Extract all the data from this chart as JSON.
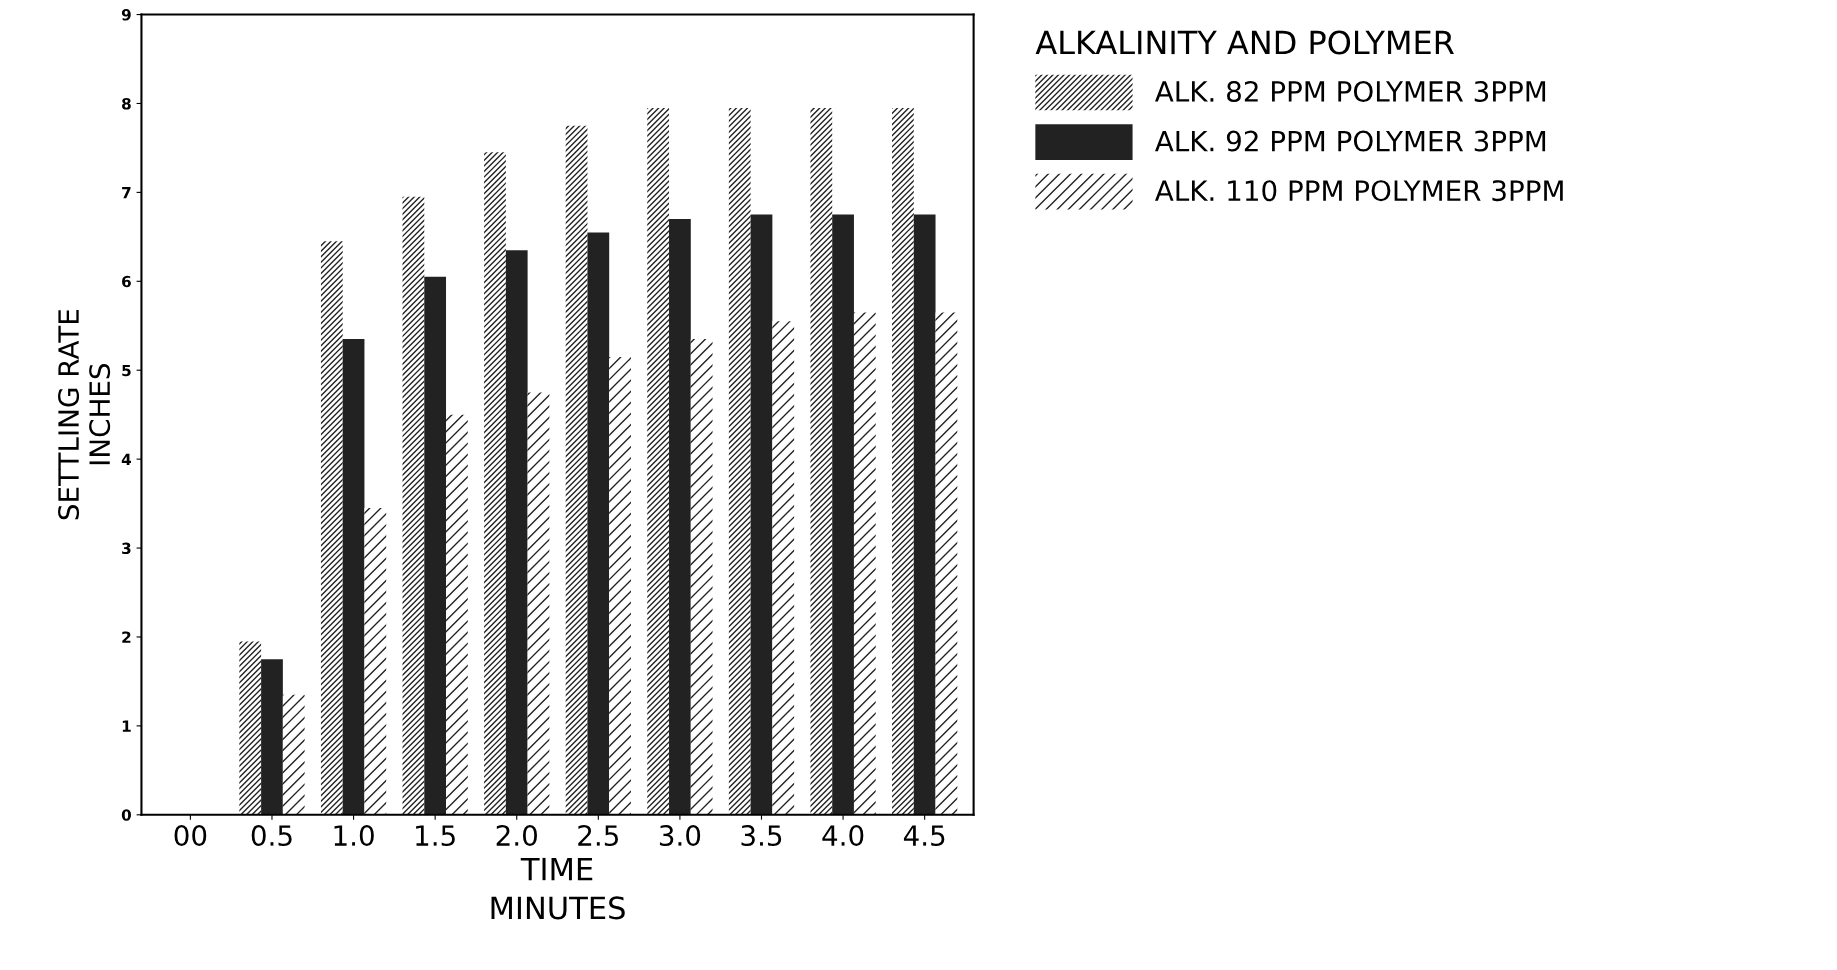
{
  "chart_data": {
    "type": "bar",
    "xlabel": "TIME\nMINUTES",
    "ylabel": "SETTLING RATE\nINCHES",
    "legend_title": "ALKALINITY AND POLYMER",
    "categories": [
      "00",
      "0.5",
      "1.0",
      "1.5",
      "2.0",
      "2.5",
      "3.0",
      "3.5",
      "4.0",
      "4.5"
    ],
    "series": [
      {
        "name": "ALK. 82 PPM POLYMER 3PPM",
        "color": "#ffffff",
        "values": [
          0,
          1.95,
          6.45,
          6.95,
          7.45,
          7.75,
          7.95,
          7.95,
          7.95,
          7.95
        ]
      },
      {
        "name": "ALK. 92 PPM POLYMER 3PPM",
        "color": "#222222",
        "values": [
          0,
          1.75,
          5.35,
          6.05,
          6.35,
          6.55,
          6.7,
          6.75,
          6.75,
          6.75
        ]
      },
      {
        "name": "ALK. 110 PPM POLYMER 3PPM",
        "color": "#ffffff",
        "values": [
          0,
          1.35,
          3.45,
          4.5,
          4.75,
          5.15,
          5.35,
          5.55,
          5.65,
          5.65
        ]
      }
    ],
    "ylim": [
      0,
      9
    ],
    "yticks": [
      0,
      1,
      2,
      3,
      4,
      5,
      6,
      7,
      8,
      9
    ],
    "grid": false,
    "legend": "top right"
  }
}
